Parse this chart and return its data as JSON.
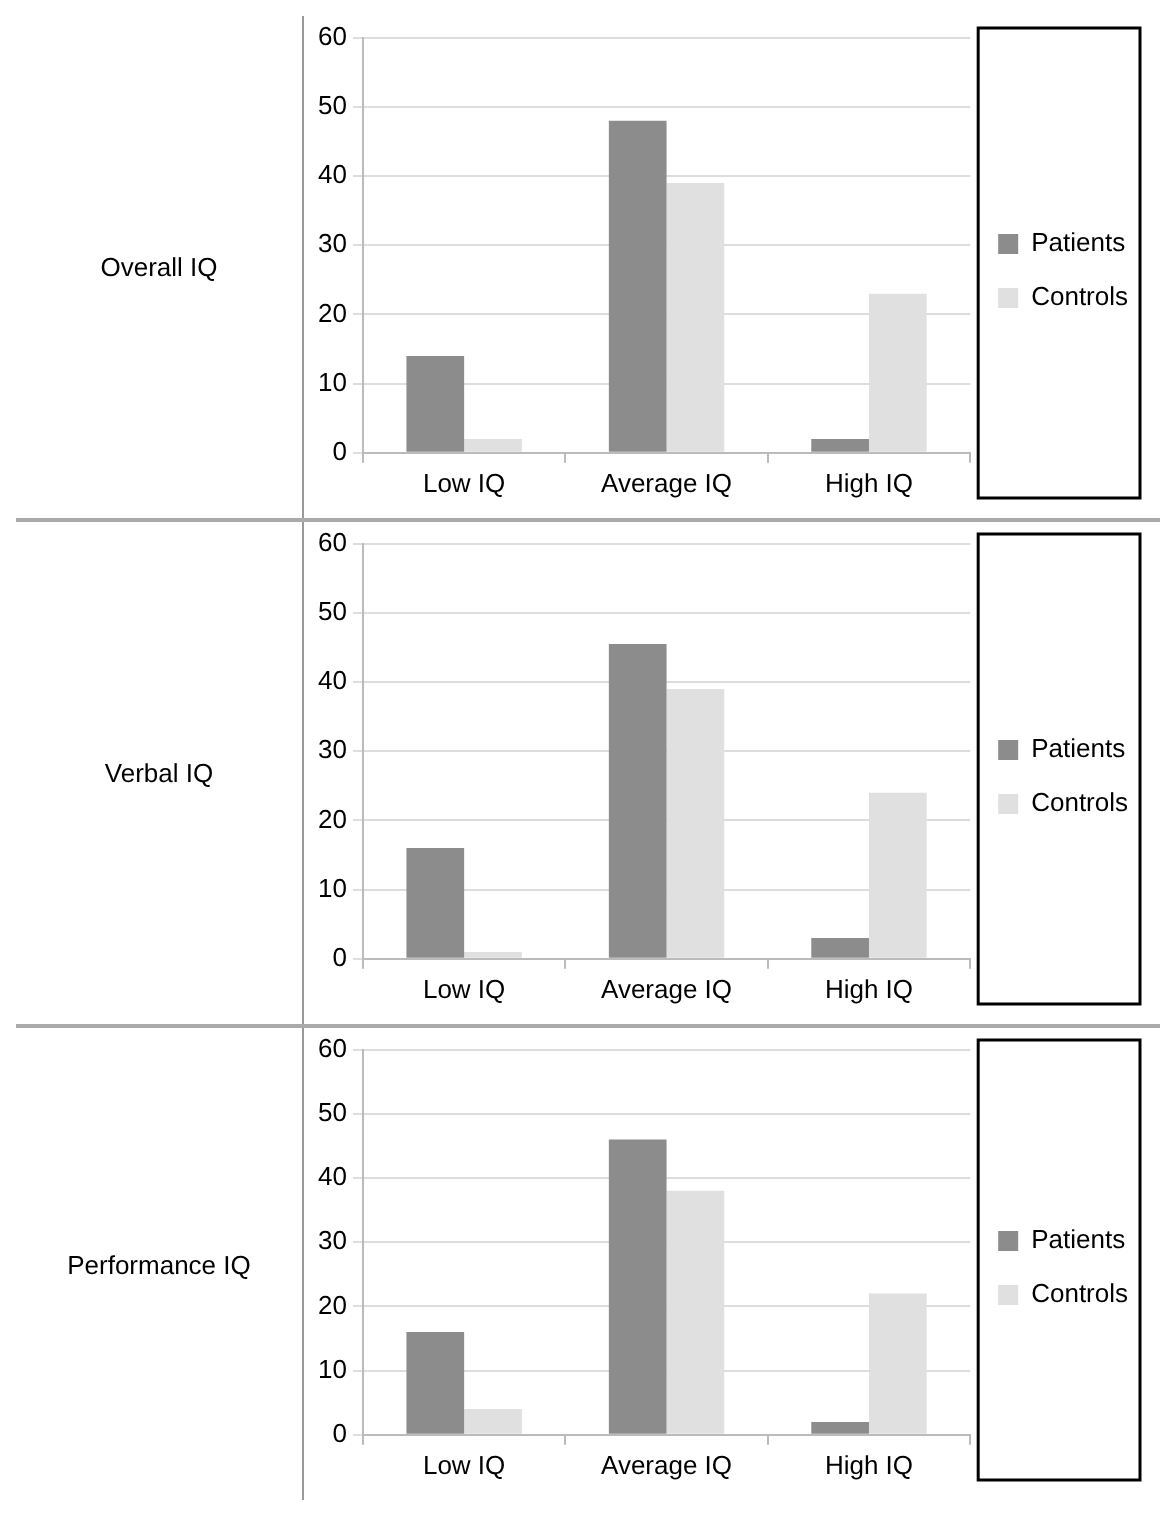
{
  "chart_data": [
    {
      "type": "bar",
      "title": "Overall IQ",
      "categories": [
        "Low IQ",
        "Average IQ",
        "High IQ"
      ],
      "series": [
        {
          "name": "Patients",
          "color": "#8c8c8c",
          "values": [
            14,
            48,
            2
          ]
        },
        {
          "name": "Controls",
          "color": "#e0e0e0",
          "values": [
            2,
            39,
            23
          ]
        }
      ],
      "ylim": [
        0,
        60
      ],
      "yticks": [
        0,
        10,
        20,
        30,
        40,
        50,
        60
      ],
      "grid": "y",
      "legend": "right"
    },
    {
      "type": "bar",
      "title": "Verbal IQ",
      "categories": [
        "Low IQ",
        "Average IQ",
        "High IQ"
      ],
      "series": [
        {
          "name": "Patients",
          "color": "#8c8c8c",
          "values": [
            16,
            45.5,
            3
          ]
        },
        {
          "name": "Controls",
          "color": "#e0e0e0",
          "values": [
            1,
            39,
            24
          ]
        }
      ],
      "ylim": [
        0,
        60
      ],
      "yticks": [
        0,
        10,
        20,
        30,
        40,
        50,
        60
      ],
      "grid": "y",
      "legend": "right"
    },
    {
      "type": "bar",
      "title": "Performance IQ",
      "categories": [
        "Low IQ",
        "Average IQ",
        "High IQ"
      ],
      "series": [
        {
          "name": "Patients",
          "color": "#8c8c8c",
          "values": [
            16,
            46,
            2
          ]
        },
        {
          "name": "Controls",
          "color": "#e0e0e0",
          "values": [
            4,
            38,
            22
          ]
        }
      ],
      "ylim": [
        0,
        60
      ],
      "yticks": [
        0,
        10,
        20,
        30,
        40,
        50,
        60
      ],
      "grid": "y",
      "legend": "right"
    }
  ]
}
